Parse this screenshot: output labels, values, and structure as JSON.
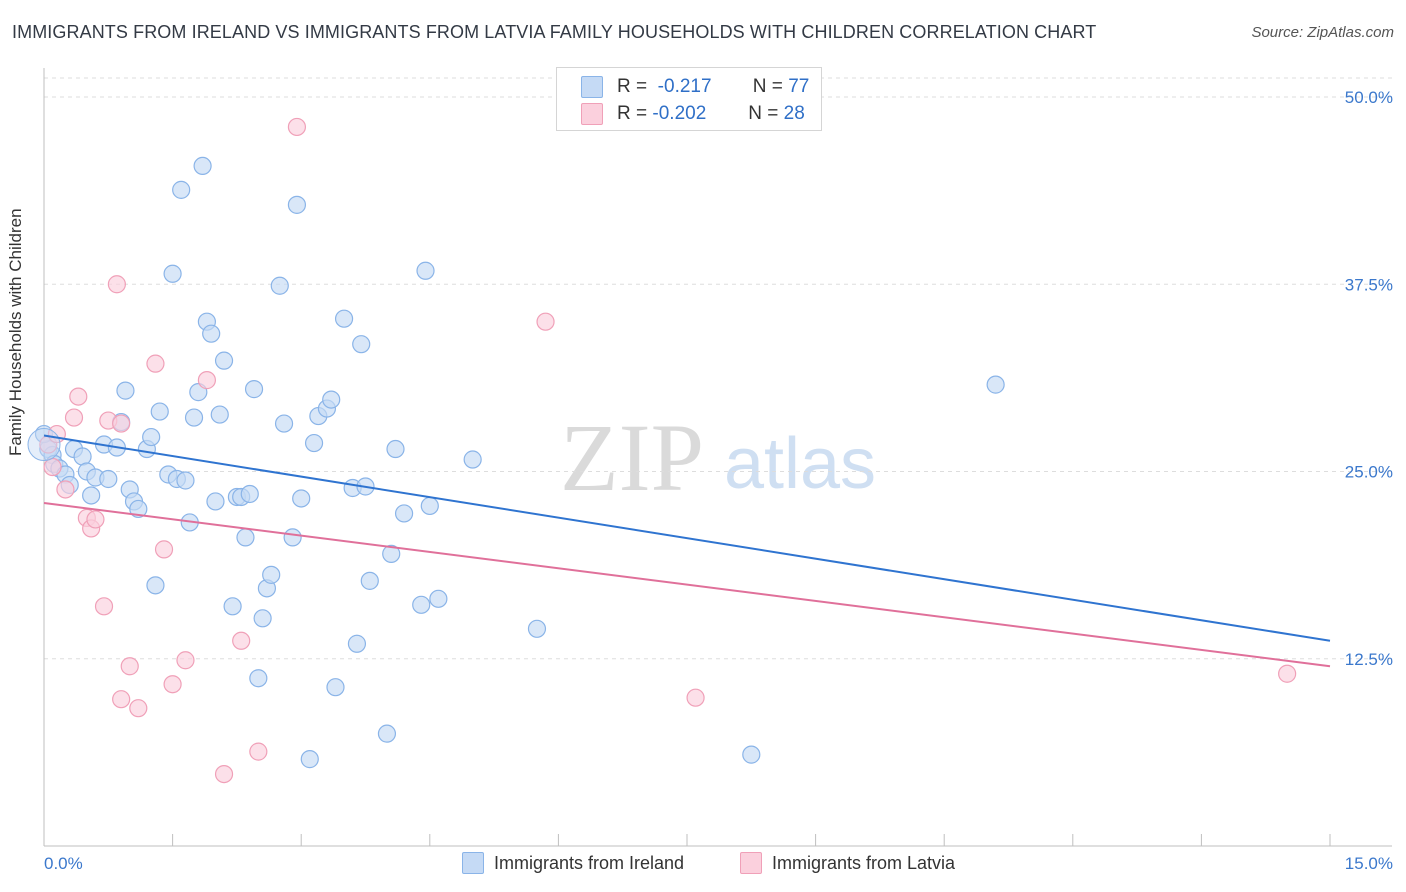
{
  "title": "IMMIGRANTS FROM IRELAND VS IMMIGRANTS FROM LATVIA FAMILY HOUSEHOLDS WITH CHILDREN CORRELATION CHART",
  "source": "Source: ZipAtlas.com",
  "watermark": {
    "zip": "ZIP",
    "atlas": "atlas"
  },
  "legend_top": [
    {
      "r_label": "R =",
      "r_value": "-0.217",
      "n_label": "N =",
      "n_value": "77",
      "color": "#8ab4e8",
      "fill": "#c5daf5"
    },
    {
      "r_label": "R =",
      "r_value": "-0.202",
      "n_label": "N =",
      "n_value": "28",
      "color": "#f0a0b8",
      "fill": "#fbd0dd"
    }
  ],
  "legend_bottom": [
    {
      "label": "Immigrants from Ireland",
      "color": "#8ab4e8",
      "fill": "#c5daf5"
    },
    {
      "label": "Immigrants from Latvia",
      "color": "#f0a0b8",
      "fill": "#fbd0dd"
    }
  ],
  "chart_data": {
    "type": "scatter",
    "xlabel": "",
    "ylabel": "Family Households with Children",
    "xlim": [
      0,
      15
    ],
    "ylim": [
      0,
      50
    ],
    "x_tick_labels": [
      "0.0%",
      "15.0%"
    ],
    "y_tick_labels": [
      "12.5%",
      "25.0%",
      "37.5%",
      "50.0%"
    ],
    "y_ticks": [
      12.5,
      25,
      37.5,
      50
    ],
    "series": [
      {
        "name": "Immigrants from Ireland",
        "color": "#2f74d0",
        "point_fill": "#c5daf5",
        "point_stroke": "#8ab4e8",
        "trendline": {
          "x": [
            0,
            15
          ],
          "y": [
            27.4,
            13.7
          ]
        },
        "points": [
          [
            0.05,
            26.5
          ],
          [
            0.1,
            26.1
          ],
          [
            0.12,
            25.5
          ],
          [
            0.18,
            25.2
          ],
          [
            0.25,
            24.8
          ],
          [
            0.3,
            24.1
          ],
          [
            0.35,
            26.5
          ],
          [
            0.45,
            26.0
          ],
          [
            0.5,
            25.0
          ],
          [
            0.55,
            23.4
          ],
          [
            0.6,
            24.6
          ],
          [
            0.7,
            26.8
          ],
          [
            0.75,
            24.5
          ],
          [
            0.85,
            26.6
          ],
          [
            0.9,
            28.3
          ],
          [
            0.95,
            30.4
          ],
          [
            1.0,
            23.8
          ],
          [
            1.05,
            23.0
          ],
          [
            1.1,
            22.5
          ],
          [
            1.2,
            26.5
          ],
          [
            1.25,
            27.3
          ],
          [
            1.3,
            17.4
          ],
          [
            1.35,
            29.0
          ],
          [
            1.45,
            24.8
          ],
          [
            1.5,
            38.2
          ],
          [
            1.55,
            24.5
          ],
          [
            1.6,
            43.8
          ],
          [
            1.65,
            24.4
          ],
          [
            1.7,
            21.6
          ],
          [
            1.75,
            28.6
          ],
          [
            1.8,
            30.3
          ],
          [
            1.85,
            45.4
          ],
          [
            1.9,
            35.0
          ],
          [
            1.95,
            34.2
          ],
          [
            2.0,
            23.0
          ],
          [
            2.05,
            28.8
          ],
          [
            2.1,
            32.4
          ],
          [
            2.2,
            16.0
          ],
          [
            2.25,
            23.3
          ],
          [
            2.3,
            23.3
          ],
          [
            2.35,
            20.6
          ],
          [
            2.4,
            23.5
          ],
          [
            2.45,
            30.5
          ],
          [
            2.5,
            11.2
          ],
          [
            2.55,
            15.2
          ],
          [
            2.6,
            17.2
          ],
          [
            2.65,
            18.1
          ],
          [
            2.75,
            37.4
          ],
          [
            2.8,
            28.2
          ],
          [
            2.9,
            20.6
          ],
          [
            2.95,
            42.8
          ],
          [
            3.0,
            23.2
          ],
          [
            3.1,
            5.8
          ],
          [
            3.15,
            26.9
          ],
          [
            3.2,
            28.7
          ],
          [
            3.3,
            29.2
          ],
          [
            3.35,
            29.8
          ],
          [
            3.4,
            10.6
          ],
          [
            3.5,
            35.2
          ],
          [
            3.6,
            23.9
          ],
          [
            3.65,
            13.5
          ],
          [
            3.7,
            33.5
          ],
          [
            3.75,
            24.0
          ],
          [
            3.8,
            17.7
          ],
          [
            4.0,
            7.5
          ],
          [
            4.05,
            19.5
          ],
          [
            4.1,
            26.5
          ],
          [
            4.2,
            22.2
          ],
          [
            4.4,
            16.1
          ],
          [
            4.45,
            38.4
          ],
          [
            4.5,
            22.7
          ],
          [
            4.6,
            16.5
          ],
          [
            5.0,
            25.8
          ],
          [
            5.75,
            14.5
          ],
          [
            8.25,
            6.1
          ],
          [
            11.1,
            30.8
          ],
          [
            0.0,
            27.5
          ]
        ]
      },
      {
        "name": "Immigrants from Latvia",
        "color": "#e0709a",
        "point_fill": "#fbd0dd",
        "point_stroke": "#f0a0b8",
        "trendline": {
          "x": [
            0,
            15
          ],
          "y": [
            22.9,
            12.0
          ]
        },
        "points": [
          [
            0.05,
            26.8
          ],
          [
            0.1,
            25.3
          ],
          [
            0.15,
            27.5
          ],
          [
            0.25,
            23.8
          ],
          [
            0.35,
            28.6
          ],
          [
            0.4,
            30.0
          ],
          [
            0.5,
            21.9
          ],
          [
            0.55,
            21.2
          ],
          [
            0.6,
            21.8
          ],
          [
            0.7,
            16.0
          ],
          [
            0.75,
            28.4
          ],
          [
            0.85,
            37.5
          ],
          [
            0.9,
            28.2
          ],
          [
            0.9,
            9.8
          ],
          [
            1.0,
            12.0
          ],
          [
            1.1,
            9.2
          ],
          [
            1.3,
            32.2
          ],
          [
            1.4,
            19.8
          ],
          [
            1.5,
            10.8
          ],
          [
            1.65,
            12.4
          ],
          [
            1.9,
            31.1
          ],
          [
            2.1,
            4.8
          ],
          [
            2.3,
            13.7
          ],
          [
            2.5,
            6.3
          ],
          [
            2.95,
            48.0
          ],
          [
            5.85,
            35.0
          ],
          [
            7.6,
            9.9
          ],
          [
            14.5,
            11.5
          ]
        ]
      }
    ]
  }
}
